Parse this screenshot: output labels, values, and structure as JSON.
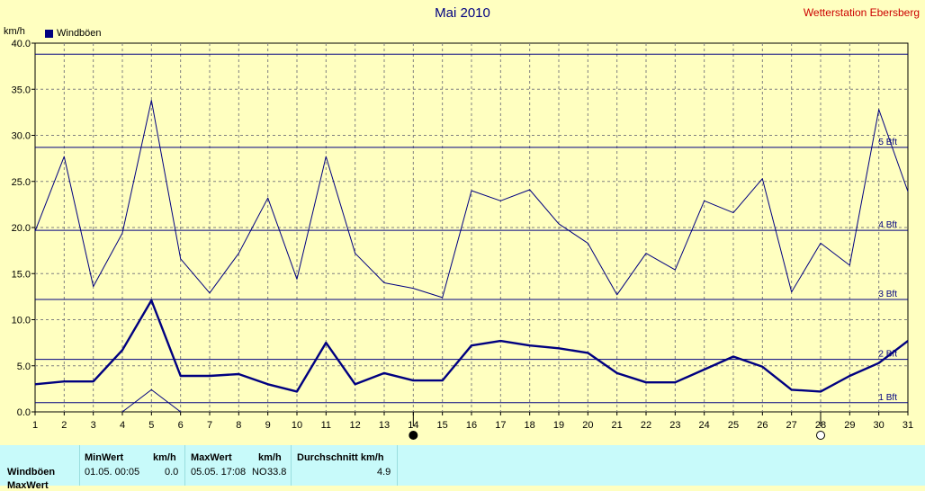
{
  "title": "Mai 2010",
  "station": "Wetterstation Ebersberg",
  "y_unit": "km/h",
  "chart_data": {
    "type": "line",
    "title": "Mai 2010",
    "ylabel": "km/h",
    "ylim": [
      0,
      40
    ],
    "xlim": [
      1,
      31
    ],
    "y_ticks": [
      "0.0",
      "5.0",
      "10.0",
      "15.0",
      "20.0",
      "25.0",
      "30.0",
      "35.0",
      "40.0"
    ],
    "x_ticks": [
      "1",
      "2",
      "3",
      "4",
      "5",
      "6",
      "7",
      "8",
      "9",
      "10",
      "11",
      "12",
      "13",
      "14",
      "15",
      "16",
      "17",
      "18",
      "19",
      "20",
      "21",
      "22",
      "23",
      "24",
      "25",
      "26",
      "27",
      "28",
      "29",
      "30",
      "31"
    ],
    "grid": true,
    "legend": "top-left",
    "x": [
      1,
      2,
      3,
      4,
      5,
      6,
      7,
      8,
      9,
      10,
      11,
      12,
      13,
      14,
      15,
      16,
      17,
      18,
      19,
      20,
      21,
      22,
      23,
      24,
      25,
      26,
      27,
      28,
      29,
      30,
      31
    ],
    "series": [
      {
        "name": "Windböen",
        "style": "bold",
        "values": [
          3.0,
          3.3,
          3.3,
          6.7,
          12.1,
          3.9,
          3.9,
          4.1,
          3.0,
          2.2,
          7.5,
          3.0,
          4.2,
          3.4,
          3.4,
          7.2,
          7.7,
          7.2,
          6.9,
          6.4,
          4.2,
          3.2,
          3.2,
          4.6,
          6.0,
          4.9,
          2.4,
          2.2,
          3.9,
          5.3,
          7.7
        ]
      },
      {
        "style": "thin",
        "values": [
          19.6,
          27.7,
          13.6,
          19.4,
          33.8,
          16.6,
          12.9,
          17.2,
          23.2,
          14.4,
          27.7,
          17.2,
          14.0,
          13.4,
          12.4,
          24.0,
          22.9,
          24.1,
          20.4,
          18.3,
          12.7,
          17.2,
          15.4,
          22.9,
          21.6,
          25.3,
          13.0,
          18.3,
          15.9,
          32.8,
          23.9
        ]
      },
      {
        "style": "thin",
        "x": [
          4,
          5,
          6
        ],
        "values": [
          0.0,
          2.4,
          0.0
        ]
      }
    ],
    "beaufort_lines": [
      {
        "value": 1.0,
        "label": "1 Bft"
      },
      {
        "value": 5.7,
        "label": "2 Bft"
      },
      {
        "value": 12.2,
        "label": "3 Bft"
      },
      {
        "value": 19.7,
        "label": "4 Bft"
      },
      {
        "value": 28.7,
        "label": "5 Bft"
      },
      {
        "value": 38.8,
        "label": ""
      }
    ],
    "markers": [
      {
        "day": 14,
        "symbol": "filled-circle"
      },
      {
        "day": 28,
        "symbol": "open-circle"
      }
    ]
  },
  "stats": {
    "headers": {
      "min": "MinWert",
      "min_unit": "km/h",
      "max": "MaxWert",
      "max_unit": "km/h",
      "avg": "Durchschnitt km/h"
    },
    "row1": {
      "label": "Windböen",
      "min_time": "01.05.  00:05",
      "min_val": "0.0",
      "max_time": "05.05.  17:08",
      "max_dir": "NO",
      "max_val": "33.8",
      "avg_val": "4.9"
    },
    "row2_label": "MaxWert"
  },
  "colors": {
    "background": "#ffffc0",
    "line": "#000080",
    "station_text": "#cc0000",
    "stats_background": "#c8fafa"
  }
}
